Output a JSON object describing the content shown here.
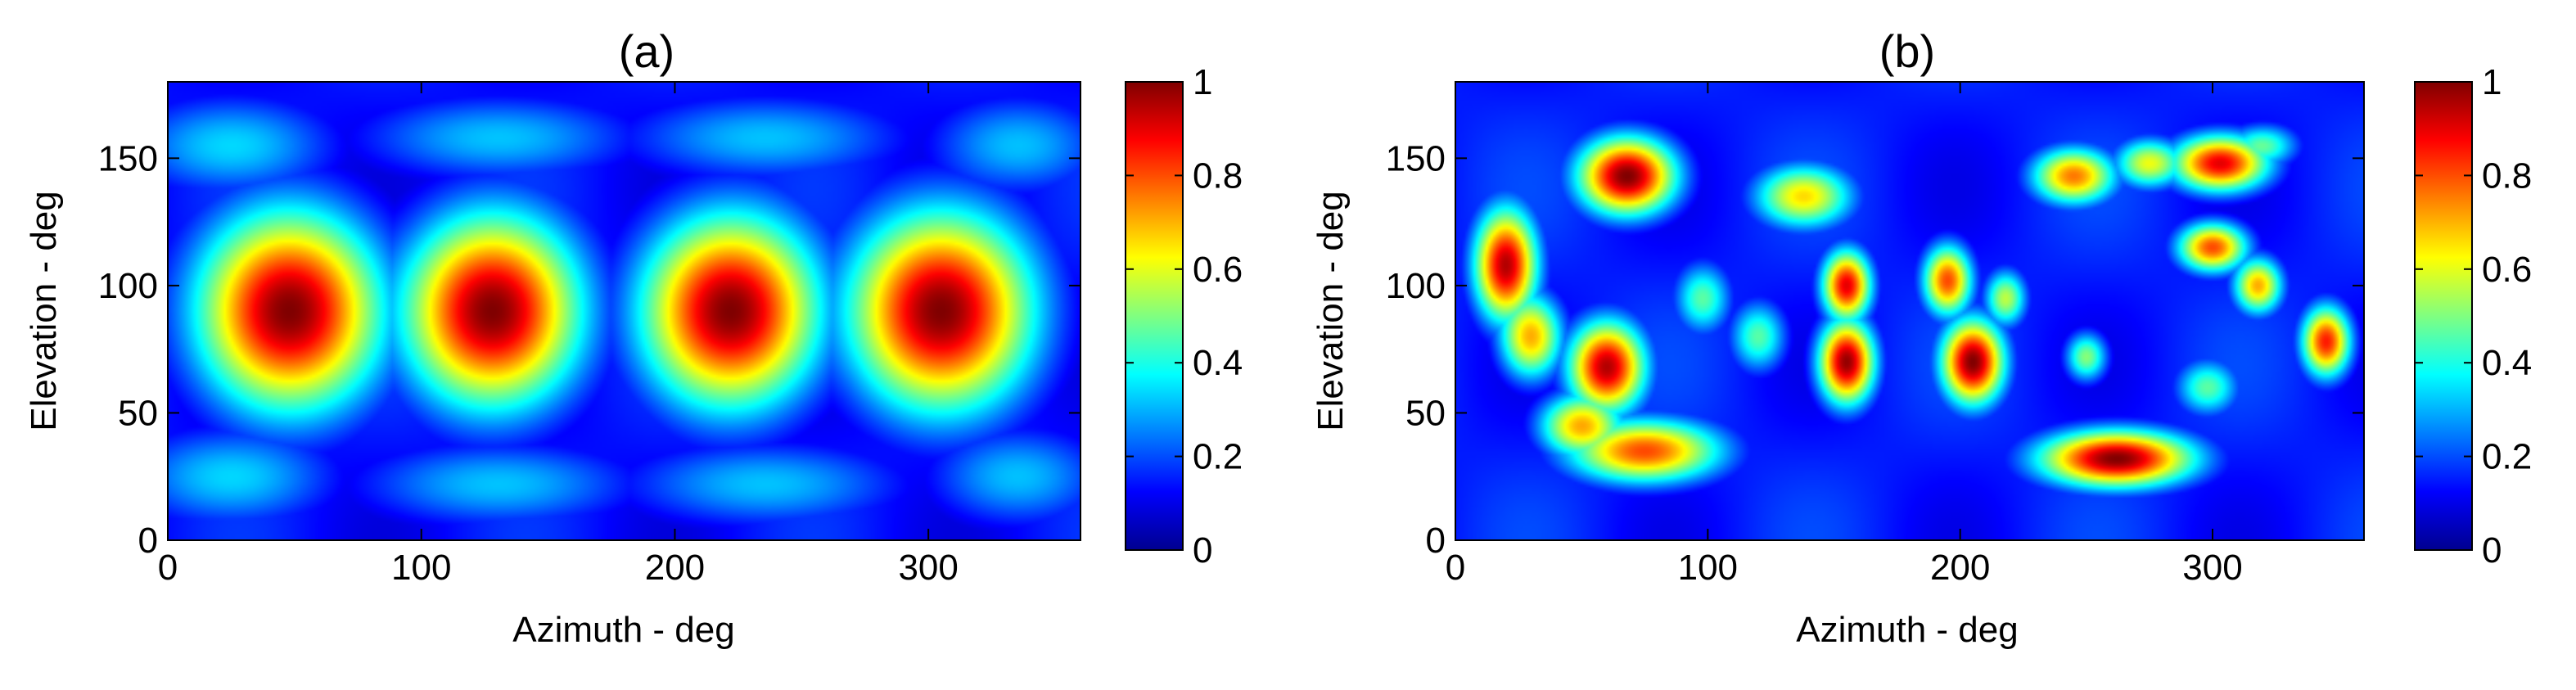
{
  "chart_data": [
    {
      "type": "heatmap",
      "panel_label": "(a)",
      "xlabel": "Azimuth - deg",
      "ylabel": "Elevation - deg",
      "xlim": [
        0,
        360
      ],
      "ylim": [
        0,
        180
      ],
      "x_ticks": [
        0,
        100,
        200,
        300
      ],
      "y_ticks": [
        0,
        50,
        100,
        150
      ],
      "colorbar": {
        "colormap": "jet",
        "range": [
          0,
          1
        ],
        "ticks": [
          0,
          0.2,
          0.4,
          0.6,
          0.8,
          1
        ],
        "tick_labels": [
          "0",
          "0.2",
          "0.4",
          "0.6",
          "0.8",
          "1"
        ]
      },
      "background_level": 0.18,
      "peaks": [
        {
          "azimuth": 48,
          "elevation": 90,
          "value": 1.0,
          "spread_az": 26,
          "spread_el": 28
        },
        {
          "azimuth": 128,
          "elevation": 90,
          "value": 1.0,
          "spread_az": 25,
          "spread_el": 27
        },
        {
          "azimuth": 222,
          "elevation": 90,
          "value": 1.0,
          "spread_az": 25,
          "spread_el": 27
        },
        {
          "azimuth": 305,
          "elevation": 90,
          "value": 1.0,
          "spread_az": 26,
          "spread_el": 28
        },
        {
          "azimuth": 25,
          "elevation": 155,
          "value": 0.32,
          "spread_az": 30,
          "spread_el": 14
        },
        {
          "azimuth": 130,
          "elevation": 158,
          "value": 0.3,
          "spread_az": 40,
          "spread_el": 12
        },
        {
          "azimuth": 235,
          "elevation": 158,
          "value": 0.3,
          "spread_az": 40,
          "spread_el": 12
        },
        {
          "azimuth": 335,
          "elevation": 155,
          "value": 0.3,
          "spread_az": 25,
          "spread_el": 14
        },
        {
          "azimuth": 25,
          "elevation": 25,
          "value": 0.32,
          "spread_az": 30,
          "spread_el": 14
        },
        {
          "azimuth": 130,
          "elevation": 22,
          "value": 0.3,
          "spread_az": 40,
          "spread_el": 12
        },
        {
          "azimuth": 235,
          "elevation": 22,
          "value": 0.3,
          "spread_az": 40,
          "spread_el": 12
        },
        {
          "azimuth": 335,
          "elevation": 25,
          "value": 0.3,
          "spread_az": 25,
          "spread_el": 14
        }
      ]
    },
    {
      "type": "heatmap",
      "panel_label": "(b)",
      "xlabel": "Azimuth - deg",
      "ylabel": "Elevation - deg",
      "xlim": [
        0,
        360
      ],
      "ylim": [
        0,
        180
      ],
      "x_ticks": [
        0,
        100,
        200,
        300
      ],
      "y_ticks": [
        0,
        50,
        100,
        150
      ],
      "colorbar": {
        "colormap": "jet",
        "range": [
          0,
          1
        ],
        "ticks": [
          0,
          0.2,
          0.4,
          0.6,
          0.8,
          1
        ],
        "tick_labels": [
          "0",
          "0.2",
          "0.4",
          "0.6",
          "0.8",
          "1"
        ]
      },
      "background_level": 0.2,
      "peaks": [
        {
          "azimuth": 68,
          "elevation": 143,
          "value": 1.0,
          "spread_az": 14,
          "spread_el": 11
        },
        {
          "azimuth": 20,
          "elevation": 108,
          "value": 0.95,
          "spread_az": 9,
          "spread_el": 16
        },
        {
          "azimuth": 30,
          "elevation": 80,
          "value": 0.7,
          "spread_az": 9,
          "spread_el": 12
        },
        {
          "azimuth": 60,
          "elevation": 68,
          "value": 0.95,
          "spread_az": 11,
          "spread_el": 13
        },
        {
          "azimuth": 75,
          "elevation": 35,
          "value": 0.8,
          "spread_az": 22,
          "spread_el": 9
        },
        {
          "azimuth": 50,
          "elevation": 45,
          "value": 0.7,
          "spread_az": 12,
          "spread_el": 9
        },
        {
          "azimuth": 138,
          "elevation": 135,
          "value": 0.65,
          "spread_az": 14,
          "spread_el": 9
        },
        {
          "azimuth": 98,
          "elevation": 95,
          "value": 0.45,
          "spread_az": 8,
          "spread_el": 10
        },
        {
          "azimuth": 155,
          "elevation": 70,
          "value": 0.98,
          "spread_az": 8,
          "spread_el": 12
        },
        {
          "azimuth": 155,
          "elevation": 100,
          "value": 0.9,
          "spread_az": 7,
          "spread_el": 10
        },
        {
          "azimuth": 120,
          "elevation": 80,
          "value": 0.45,
          "spread_az": 8,
          "spread_el": 10
        },
        {
          "azimuth": 205,
          "elevation": 70,
          "value": 1.0,
          "spread_az": 9,
          "spread_el": 12
        },
        {
          "azimuth": 195,
          "elevation": 102,
          "value": 0.8,
          "spread_az": 7,
          "spread_el": 10
        },
        {
          "azimuth": 218,
          "elevation": 95,
          "value": 0.55,
          "spread_az": 6,
          "spread_el": 8
        },
        {
          "azimuth": 245,
          "elevation": 143,
          "value": 0.75,
          "spread_az": 12,
          "spread_el": 8
        },
        {
          "azimuth": 303,
          "elevation": 148,
          "value": 0.9,
          "spread_az": 14,
          "spread_el": 8
        },
        {
          "azimuth": 275,
          "elevation": 148,
          "value": 0.6,
          "spread_az": 10,
          "spread_el": 7
        },
        {
          "azimuth": 300,
          "elevation": 115,
          "value": 0.8,
          "spread_az": 10,
          "spread_el": 7
        },
        {
          "azimuth": 318,
          "elevation": 100,
          "value": 0.7,
          "spread_az": 7,
          "spread_el": 8
        },
        {
          "azimuth": 345,
          "elevation": 78,
          "value": 0.85,
          "spread_az": 7,
          "spread_el": 10
        },
        {
          "azimuth": 262,
          "elevation": 32,
          "value": 1.0,
          "spread_az": 22,
          "spread_el": 8
        },
        {
          "azimuth": 298,
          "elevation": 60,
          "value": 0.45,
          "spread_az": 9,
          "spread_el": 8
        },
        {
          "azimuth": 250,
          "elevation": 72,
          "value": 0.5,
          "spread_az": 6,
          "spread_el": 7
        },
        {
          "azimuth": 320,
          "elevation": 155,
          "value": 0.45,
          "spread_az": 10,
          "spread_el": 6
        }
      ]
    }
  ]
}
